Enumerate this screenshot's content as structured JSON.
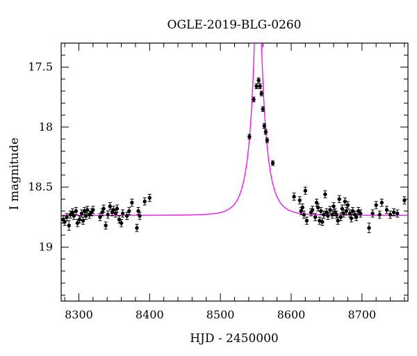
{
  "chart_data": {
    "type": "scatter",
    "title": "OGLE-2019-BLG-0260",
    "xlabel": "HJD - 2450000",
    "ylabel": "I magnitude",
    "xlim": [
      8275,
      8765
    ],
    "ylim": [
      19.45,
      17.3
    ],
    "y_inverted": true,
    "grid": false,
    "x_ticks": [
      {
        "value": 8300,
        "label": "8300"
      },
      {
        "value": 8400,
        "label": "8400"
      },
      {
        "value": 8500,
        "label": "8500"
      },
      {
        "value": 8600,
        "label": "8600"
      },
      {
        "value": 8700,
        "label": "8700"
      }
    ],
    "y_ticks": [
      {
        "value": 17.5,
        "label": "17.5"
      },
      {
        "value": 18.0,
        "label": "18"
      },
      {
        "value": 18.5,
        "label": "18.5"
      },
      {
        "value": 19.0,
        "label": "19"
      }
    ],
    "colors": {
      "points": "#000000",
      "model": "#ff00ff"
    },
    "model": {
      "baseline": 18.735,
      "t0": 8553,
      "u0": 0.065,
      "tE": 19
    },
    "points": [
      {
        "x": 8278,
        "y": 18.77,
        "e": 0.03
      },
      {
        "x": 8280,
        "y": 18.79,
        "e": 0.03
      },
      {
        "x": 8283,
        "y": 18.75,
        "e": 0.03
      },
      {
        "x": 8286,
        "y": 18.82,
        "e": 0.04
      },
      {
        "x": 8288,
        "y": 18.73,
        "e": 0.03
      },
      {
        "x": 8291,
        "y": 18.71,
        "e": 0.03
      },
      {
        "x": 8293,
        "y": 18.74,
        "e": 0.03
      },
      {
        "x": 8296,
        "y": 18.7,
        "e": 0.03
      },
      {
        "x": 8298,
        "y": 18.8,
        "e": 0.03
      },
      {
        "x": 8301,
        "y": 18.77,
        "e": 0.03
      },
      {
        "x": 8304,
        "y": 18.72,
        "e": 0.03
      },
      {
        "x": 8306,
        "y": 18.78,
        "e": 0.03
      },
      {
        "x": 8308,
        "y": 18.7,
        "e": 0.03
      },
      {
        "x": 8310,
        "y": 18.74,
        "e": 0.03
      },
      {
        "x": 8312,
        "y": 18.69,
        "e": 0.03
      },
      {
        "x": 8315,
        "y": 18.73,
        "e": 0.03
      },
      {
        "x": 8318,
        "y": 18.71,
        "e": 0.03
      },
      {
        "x": 8320,
        "y": 18.69,
        "e": 0.03
      },
      {
        "x": 8330,
        "y": 18.75,
        "e": 0.03
      },
      {
        "x": 8333,
        "y": 18.71,
        "e": 0.03
      },
      {
        "x": 8335,
        "y": 18.68,
        "e": 0.03
      },
      {
        "x": 8338,
        "y": 18.82,
        "e": 0.03
      },
      {
        "x": 8341,
        "y": 18.73,
        "e": 0.03
      },
      {
        "x": 8344,
        "y": 18.66,
        "e": 0.03
      },
      {
        "x": 8347,
        "y": 18.71,
        "e": 0.03
      },
      {
        "x": 8349,
        "y": 18.69,
        "e": 0.03
      },
      {
        "x": 8352,
        "y": 18.72,
        "e": 0.03
      },
      {
        "x": 8354,
        "y": 18.68,
        "e": 0.03
      },
      {
        "x": 8357,
        "y": 18.77,
        "e": 0.03
      },
      {
        "x": 8360,
        "y": 18.8,
        "e": 0.03
      },
      {
        "x": 8362,
        "y": 18.72,
        "e": 0.03
      },
      {
        "x": 8368,
        "y": 18.74,
        "e": 0.03
      },
      {
        "x": 8371,
        "y": 18.7,
        "e": 0.03
      },
      {
        "x": 8375,
        "y": 18.63,
        "e": 0.03
      },
      {
        "x": 8382,
        "y": 18.84,
        "e": 0.03
      },
      {
        "x": 8384,
        "y": 18.7,
        "e": 0.03
      },
      {
        "x": 8386,
        "y": 18.74,
        "e": 0.03
      },
      {
        "x": 8393,
        "y": 18.62,
        "e": 0.03
      },
      {
        "x": 8400,
        "y": 18.59,
        "e": 0.03
      },
      {
        "x": 8541,
        "y": 18.08,
        "e": 0.02
      },
      {
        "x": 8547,
        "y": 17.77,
        "e": 0.02
      },
      {
        "x": 8551,
        "y": 17.66,
        "e": 0.02
      },
      {
        "x": 8554,
        "y": 17.61,
        "e": 0.02
      },
      {
        "x": 8556,
        "y": 17.66,
        "e": 0.02
      },
      {
        "x": 8558,
        "y": 17.72,
        "e": 0.02
      },
      {
        "x": 8560,
        "y": 17.85,
        "e": 0.02
      },
      {
        "x": 8562,
        "y": 17.99,
        "e": 0.02
      },
      {
        "x": 8564,
        "y": 18.04,
        "e": 0.02
      },
      {
        "x": 8566,
        "y": 18.11,
        "e": 0.02
      },
      {
        "x": 8574,
        "y": 18.3,
        "e": 0.02
      },
      {
        "x": 8604,
        "y": 18.58,
        "e": 0.03
      },
      {
        "x": 8612,
        "y": 18.61,
        "e": 0.03
      },
      {
        "x": 8614,
        "y": 18.7,
        "e": 0.03
      },
      {
        "x": 8616,
        "y": 18.67,
        "e": 0.03
      },
      {
        "x": 8618,
        "y": 18.73,
        "e": 0.03
      },
      {
        "x": 8620,
        "y": 18.53,
        "e": 0.03
      },
      {
        "x": 8622,
        "y": 18.78,
        "e": 0.03
      },
      {
        "x": 8628,
        "y": 18.71,
        "e": 0.03
      },
      {
        "x": 8630,
        "y": 18.69,
        "e": 0.03
      },
      {
        "x": 8634,
        "y": 18.75,
        "e": 0.03
      },
      {
        "x": 8636,
        "y": 18.63,
        "e": 0.03
      },
      {
        "x": 8638,
        "y": 18.67,
        "e": 0.03
      },
      {
        "x": 8640,
        "y": 18.78,
        "e": 0.03
      },
      {
        "x": 8642,
        "y": 18.7,
        "e": 0.03
      },
      {
        "x": 8644,
        "y": 18.79,
        "e": 0.03
      },
      {
        "x": 8646,
        "y": 18.73,
        "e": 0.03
      },
      {
        "x": 8648,
        "y": 18.56,
        "e": 0.03
      },
      {
        "x": 8650,
        "y": 18.71,
        "e": 0.03
      },
      {
        "x": 8652,
        "y": 18.74,
        "e": 0.03
      },
      {
        "x": 8655,
        "y": 18.69,
        "e": 0.03
      },
      {
        "x": 8658,
        "y": 18.73,
        "e": 0.03
      },
      {
        "x": 8660,
        "y": 18.66,
        "e": 0.03
      },
      {
        "x": 8662,
        "y": 18.71,
        "e": 0.03
      },
      {
        "x": 8664,
        "y": 18.73,
        "e": 0.03
      },
      {
        "x": 8666,
        "y": 18.78,
        "e": 0.03
      },
      {
        "x": 8668,
        "y": 18.6,
        "e": 0.03
      },
      {
        "x": 8670,
        "y": 18.75,
        "e": 0.03
      },
      {
        "x": 8672,
        "y": 18.68,
        "e": 0.03
      },
      {
        "x": 8674,
        "y": 18.72,
        "e": 0.03
      },
      {
        "x": 8676,
        "y": 18.62,
        "e": 0.03
      },
      {
        "x": 8678,
        "y": 18.7,
        "e": 0.03
      },
      {
        "x": 8680,
        "y": 18.65,
        "e": 0.03
      },
      {
        "x": 8683,
        "y": 18.72,
        "e": 0.03
      },
      {
        "x": 8685,
        "y": 18.76,
        "e": 0.03
      },
      {
        "x": 8687,
        "y": 18.7,
        "e": 0.03
      },
      {
        "x": 8690,
        "y": 18.73,
        "e": 0.03
      },
      {
        "x": 8692,
        "y": 18.75,
        "e": 0.03
      },
      {
        "x": 8695,
        "y": 18.7,
        "e": 0.03
      },
      {
        "x": 8698,
        "y": 18.72,
        "e": 0.03
      },
      {
        "x": 8710,
        "y": 18.84,
        "e": 0.04
      },
      {
        "x": 8715,
        "y": 18.72,
        "e": 0.03
      },
      {
        "x": 8720,
        "y": 18.65,
        "e": 0.03
      },
      {
        "x": 8725,
        "y": 18.73,
        "e": 0.03
      },
      {
        "x": 8728,
        "y": 18.63,
        "e": 0.03
      },
      {
        "x": 8735,
        "y": 18.69,
        "e": 0.03
      },
      {
        "x": 8740,
        "y": 18.73,
        "e": 0.03
      },
      {
        "x": 8745,
        "y": 18.71,
        "e": 0.03
      },
      {
        "x": 8750,
        "y": 18.72,
        "e": 0.03
      },
      {
        "x": 8760,
        "y": 18.61,
        "e": 0.03
      }
    ]
  }
}
